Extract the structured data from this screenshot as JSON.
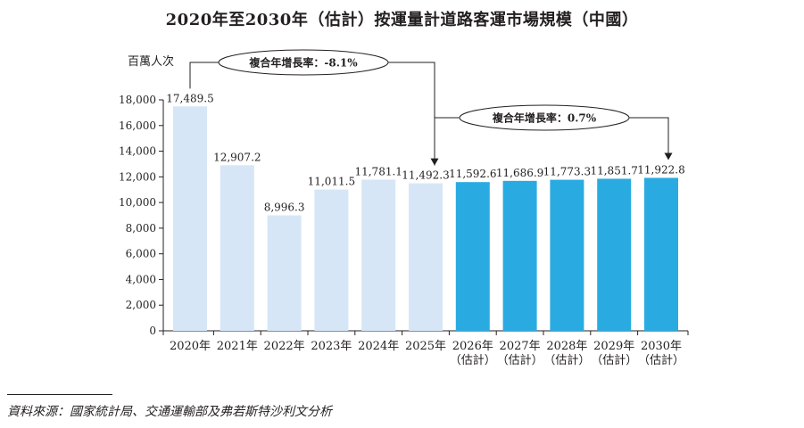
{
  "title": "2020年至2030年（估計）按運量計道路客運市場規模（中國）",
  "source": "資料來源：國家統計局、交通運輸部及弗若斯特沙利文分析",
  "colors": {
    "historical": "#d6e6f6",
    "forecast": "#29abe2",
    "text": "#231f20"
  },
  "chart_data": {
    "type": "bar",
    "title": "2020年至2030年（估計）按運量計道路客運市場規模（中國）",
    "ylabel": "百萬人次",
    "xlabel": "",
    "ylim": [
      0,
      18000
    ],
    "yticks": [
      0,
      2000,
      4000,
      6000,
      8000,
      10000,
      12000,
      14000,
      16000,
      18000
    ],
    "ytick_labels": [
      "0",
      "2,000",
      "4,000",
      "6,000",
      "8,000",
      "10,000",
      "12,000",
      "14,000",
      "16,000",
      "18,000"
    ],
    "categories": [
      [
        "2020年"
      ],
      [
        "2021年"
      ],
      [
        "2022年"
      ],
      [
        "2023年"
      ],
      [
        "2024年"
      ],
      [
        "2025年"
      ],
      [
        "2026年",
        "（估計）"
      ],
      [
        "2027年",
        "（估計）"
      ],
      [
        "2028年",
        "（估計）"
      ],
      [
        "2029年",
        "（估計）"
      ],
      [
        "2030年",
        "（估計）"
      ]
    ],
    "values": [
      17489.5,
      12907.2,
      8996.3,
      11011.5,
      11781.1,
      11492.3,
      11592.6,
      11686.9,
      11773.3,
      11851.7,
      11922.8
    ],
    "value_labels": [
      "17,489.5",
      "12,907.2",
      "8,996.3",
      "11,011.5",
      "11,781.1",
      "11,492.3",
      "11,592.6",
      "11,686.9",
      "11,773.3",
      "11,851.7",
      "11,922.8"
    ],
    "forecast": [
      false,
      false,
      false,
      false,
      false,
      false,
      true,
      true,
      true,
      true,
      true
    ],
    "grid": false,
    "annotations": [
      {
        "label": "複合年增長率：",
        "value": "-8.1%",
        "from": 0,
        "to": 5
      },
      {
        "label": "複合年增長率：",
        "value": "0.7%",
        "from": 5,
        "to": 10
      }
    ]
  }
}
